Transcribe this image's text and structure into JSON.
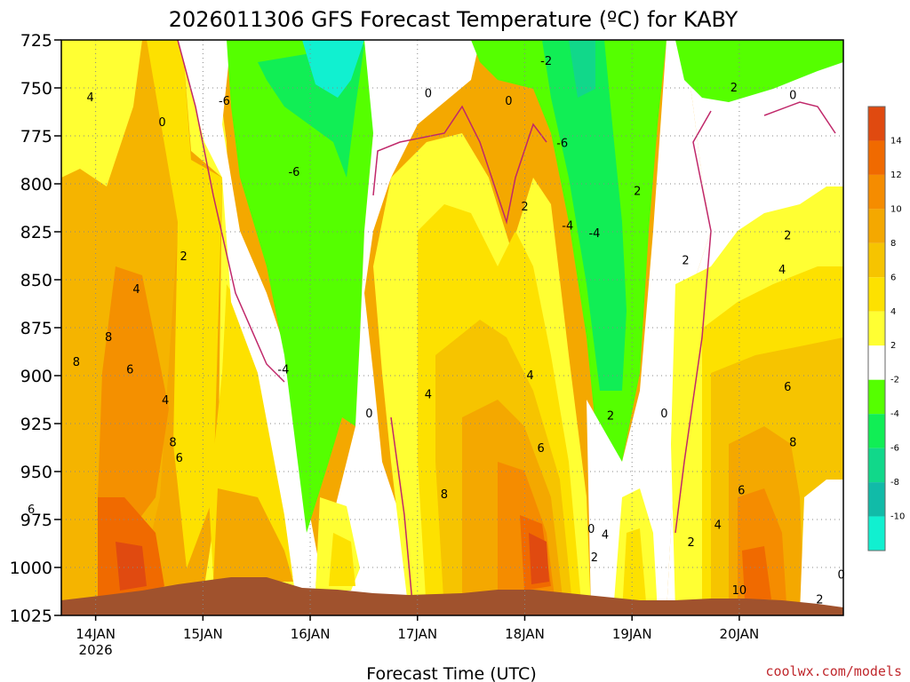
{
  "chart_data": {
    "type": "contour",
    "title": "2026011306 GFS Forecast Temperature (ºC) for KABY",
    "xlabel": "Forecast Time (UTC)",
    "ylabel": "",
    "credit": "coolwx.com/models",
    "y_levels": [
      725,
      750,
      775,
      800,
      825,
      850,
      875,
      900,
      925,
      950,
      975,
      1000,
      1025
    ],
    "y_tick_labels": [
      "725",
      "750",
      "775",
      "800",
      "825",
      "850",
      "875",
      "900",
      "925",
      "950",
      "975",
      "1000",
      "1025"
    ],
    "ylim": [
      725,
      1025
    ],
    "x_ticks": [
      "14JAN",
      "15JAN",
      "16JAN",
      "17JAN",
      "18JAN",
      "19JAN",
      "20JAN"
    ],
    "x_sub_label": "2026",
    "grid": true,
    "legend": "right",
    "colorbar": {
      "labels": [
        "14",
        "12",
        "10",
        "8",
        "6",
        "4",
        "2",
        "-2",
        "-4",
        "-6",
        "-8",
        "-10"
      ],
      "colors": [
        "#e04a10",
        "#f06a00",
        "#f58c00",
        "#f4a800",
        "#f6c400",
        "#fde100",
        "#ffff33",
        "#ffffff",
        "#55ff00",
        "#11ee55",
        "#11d88a",
        "#11bba8",
        "#11f0d0"
      ]
    },
    "contour_labels": [
      {
        "t": 0.95,
        "p": 755,
        "v": "4"
      },
      {
        "t": 0.4,
        "p": 970,
        "v": "6"
      },
      {
        "t": 0.82,
        "p": 893,
        "v": "8"
      },
      {
        "t": 1.12,
        "p": 880,
        "v": "8"
      },
      {
        "t": 1.32,
        "p": 897,
        "v": "6"
      },
      {
        "t": 1.38,
        "p": 855,
        "v": "4"
      },
      {
        "t": 1.62,
        "p": 768,
        "v": "0"
      },
      {
        "t": 1.65,
        "p": 913,
        "v": "4"
      },
      {
        "t": 1.78,
        "p": 943,
        "v": "6"
      },
      {
        "t": 1.72,
        "p": 935,
        "v": "8"
      },
      {
        "t": 1.82,
        "p": 838,
        "v": "2"
      },
      {
        "t": 2.2,
        "p": 757,
        "v": "-6"
      },
      {
        "t": 2.85,
        "p": 794,
        "v": "-6"
      },
      {
        "t": 2.75,
        "p": 897,
        "v": "-4"
      },
      {
        "t": 3.55,
        "p": 920,
        "v": "0"
      },
      {
        "t": 4.1,
        "p": 910,
        "v": "4"
      },
      {
        "t": 4.25,
        "p": 962,
        "v": "8"
      },
      {
        "t": 4.1,
        "p": 753,
        "v": "0"
      },
      {
        "t": 4.85,
        "p": 757,
        "v": "0"
      },
      {
        "t": 5.0,
        "p": 812,
        "v": "2"
      },
      {
        "t": 5.05,
        "p": 900,
        "v": "4"
      },
      {
        "t": 5.15,
        "p": 938,
        "v": "6"
      },
      {
        "t": 5.2,
        "p": 736,
        "v": "-2"
      },
      {
        "t": 5.35,
        "p": 779,
        "v": "-6"
      },
      {
        "t": 5.4,
        "p": 822,
        "v": "-4"
      },
      {
        "t": 5.65,
        "p": 826,
        "v": "-4"
      },
      {
        "t": 6.05,
        "p": 804,
        "v": "2"
      },
      {
        "t": 5.8,
        "p": 921,
        "v": "2"
      },
      {
        "t": 6.3,
        "p": 920,
        "v": "0"
      },
      {
        "t": 5.62,
        "p": 980,
        "v": "0"
      },
      {
        "t": 5.75,
        "p": 983,
        "v": "4"
      },
      {
        "t": 5.65,
        "p": 995,
        "v": "2"
      },
      {
        "t": 6.55,
        "p": 987,
        "v": "2"
      },
      {
        "t": 6.5,
        "p": 840,
        "v": "2"
      },
      {
        "t": 6.95,
        "p": 750,
        "v": "2"
      },
      {
        "t": 7.5,
        "p": 754,
        "v": "0"
      },
      {
        "t": 7.45,
        "p": 827,
        "v": "2"
      },
      {
        "t": 7.4,
        "p": 845,
        "v": "4"
      },
      {
        "t": 7.45,
        "p": 906,
        "v": "6"
      },
      {
        "t": 7.5,
        "p": 935,
        "v": "8"
      },
      {
        "t": 7.02,
        "p": 960,
        "v": "6"
      },
      {
        "t": 6.8,
        "p": 978,
        "v": "4"
      },
      {
        "t": 7.0,
        "p": 1012,
        "v": "10"
      },
      {
        "t": 7.95,
        "p": 1004,
        "v": "0"
      },
      {
        "t": 7.75,
        "p": 1017,
        "v": "2"
      }
    ]
  }
}
